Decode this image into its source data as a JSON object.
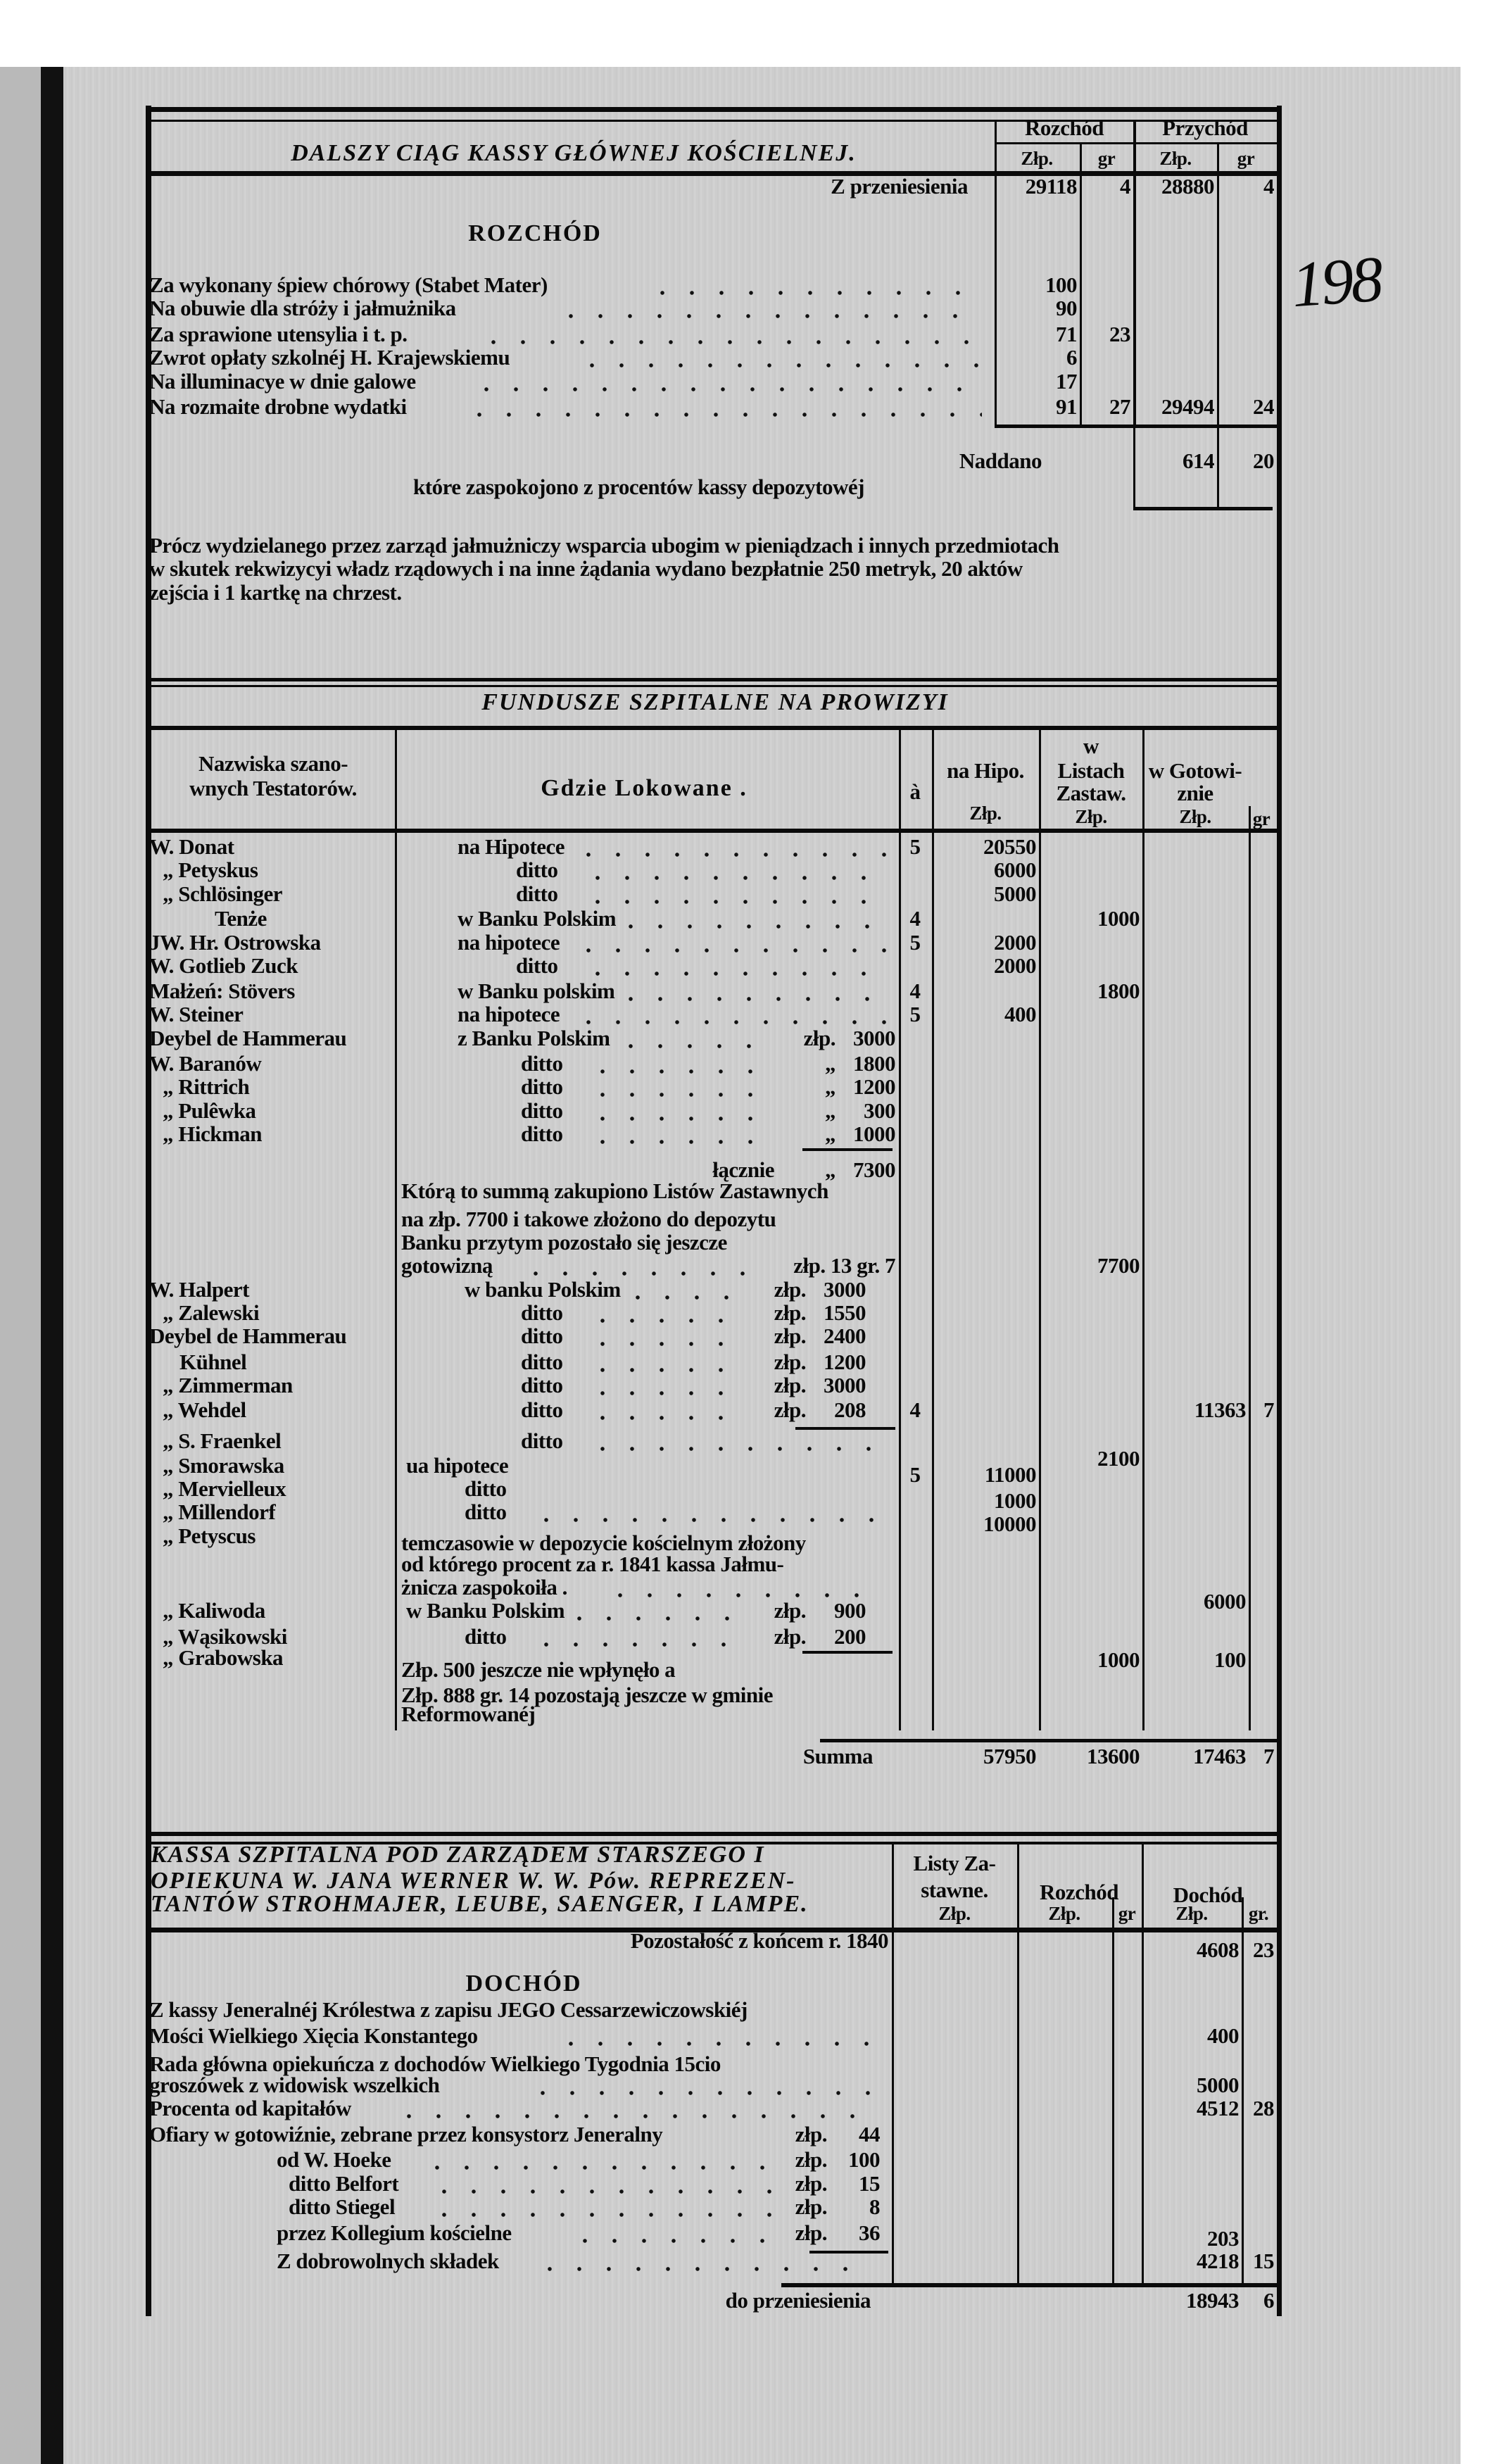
{
  "handwritten_page_number": "198",
  "s1": {
    "title": "DALSZY CIĄG KASSY GŁÓWNEJ KOŚCIELNEJ.",
    "h_rozchod": "Rozchód",
    "h_przychod": "Przychód",
    "h_zlp": "Złp.",
    "h_gr": "gr",
    "carry_label": "Z przeniesienia",
    "carry": {
      "rozchod_zlp": "29118",
      "rozchod_gr": "4",
      "przychod_zlp": "28880",
      "przychod_gr": "4"
    },
    "section": "ROZCHÓD",
    "items": [
      {
        "label": "Za wykonany śpiew chórowy (Stabet Mater)",
        "zlp": "100",
        "gr": ""
      },
      {
        "label": "Na obuwie dla stróży i jałmużnika",
        "zlp": "90",
        "gr": ""
      },
      {
        "label": "Za sprawione utensylia i t. p.",
        "zlp": "71",
        "gr": "23"
      },
      {
        "label": "Zwrot opłaty szkolnéj H. Krajewskiemu",
        "zlp": "6",
        "gr": ""
      },
      {
        "label": "Na illuminacye w dnie galowe",
        "zlp": "17",
        "gr": ""
      },
      {
        "label": "Na rozmaite drobne wydatki",
        "zlp": "91",
        "gr": "27"
      }
    ],
    "total": {
      "zlp": "29494",
      "gr": "24"
    },
    "naddano_label": "Naddano",
    "naddano": {
      "zlp": "614",
      "gr": "20"
    },
    "naddano_note": "które zaspokojono z procentów kassy depozytowéj",
    "paragraph": [
      "Prócz wydzielanego przez zarząd jałmużniczy wsparcia ubogim w pieniądzach i innych przedmiotach",
      "w skutek rekwizycyi władz rządowych i na inne żądania wydano bezpłatnie 250 metryk, 20 aktów",
      "zejścia i 1 kartkę na chrzest."
    ]
  },
  "s2": {
    "title": "FUNDUSZE SZPITALNE NA PROWIZYI",
    "headers": {
      "names": [
        "Nazwiska szano-",
        "wnych Testatorów."
      ],
      "where": "Gdzie Lokowane .",
      "rate": "à",
      "hipo": [
        "na Hipo.",
        "Złp."
      ],
      "listy": [
        "w",
        "Listach",
        "Zastaw.",
        "Złp."
      ],
      "gotow": [
        "w Gotowi-",
        "znie",
        "Złp."
      ],
      "gr": "gr"
    },
    "rows": [
      {
        "name": "W. Donat",
        "where": "na Hipotece",
        "rate": "5",
        "hipo": "20550",
        "listy": "",
        "gotow": "",
        "gr": "",
        "amt_prefix": "",
        "amt": ""
      },
      {
        "name": "„ Petyskus",
        "where": "ditto",
        "rate": "",
        "hipo": "6000",
        "listy": "",
        "gotow": "",
        "gr": "",
        "amt_prefix": "",
        "amt": ""
      },
      {
        "name": "„ Schlösinger",
        "where": "ditto",
        "rate": "",
        "hipo": "5000",
        "listy": "",
        "gotow": "",
        "gr": "",
        "amt_prefix": "",
        "amt": ""
      },
      {
        "name": "Tenże",
        "where": "w Banku Polskim",
        "rate": "4",
        "hipo": "",
        "listy": "1000",
        "gotow": "",
        "gr": "",
        "amt_prefix": "",
        "amt": ""
      },
      {
        "name": "JW. Hr. Ostrowska",
        "where": "na hipotece",
        "rate": "5",
        "hipo": "2000",
        "listy": "",
        "gotow": "",
        "gr": "",
        "amt_prefix": "",
        "amt": ""
      },
      {
        "name": "W. Gotlieb Zuck",
        "where": "ditto",
        "rate": "",
        "hipo": "2000",
        "listy": "",
        "gotow": "",
        "gr": "",
        "amt_prefix": "",
        "amt": ""
      },
      {
        "name": "Małżeń: Stövers",
        "where": "w Banku polskim",
        "rate": "4",
        "hipo": "",
        "listy": "1800",
        "gotow": "",
        "gr": "",
        "amt_prefix": "",
        "amt": ""
      },
      {
        "name": "W. Steiner",
        "where": "na hipotece",
        "rate": "5",
        "hipo": "400",
        "listy": "",
        "gotow": "",
        "gr": "",
        "amt_prefix": "",
        "amt": ""
      },
      {
        "name": "Deybel de Hammerau",
        "where": "z Banku Polskim",
        "rate": "",
        "hipo": "",
        "listy": "",
        "gotow": "",
        "gr": "",
        "amt_prefix": "złp.",
        "amt": "3000"
      },
      {
        "name": "W. Baranów",
        "where": "ditto",
        "rate": "",
        "hipo": "",
        "listy": "",
        "gotow": "",
        "gr": "",
        "amt_prefix": "„",
        "amt": "1800"
      },
      {
        "name": "„ Rittrich",
        "where": "ditto",
        "rate": "",
        "hipo": "",
        "listy": "",
        "gotow": "",
        "gr": "",
        "amt_prefix": "„",
        "amt": "1200"
      },
      {
        "name": "„ Pulêwka",
        "where": "ditto",
        "rate": "",
        "hipo": "",
        "listy": "",
        "gotow": "",
        "gr": "",
        "amt_prefix": "„",
        "amt": "300"
      },
      {
        "name": "„ Hickman",
        "where": "ditto",
        "rate": "",
        "hipo": "",
        "listy": "",
        "gotow": "",
        "gr": "",
        "amt_prefix": "„",
        "amt": "1000"
      },
      {
        "name": "W. Halpert",
        "where": "w banku Polskim",
        "rate": "",
        "hipo": "",
        "listy": "",
        "gotow": "",
        "gr": "",
        "amt_prefix": "złp.",
        "amt": "3000"
      },
      {
        "name": "„ Zalewski",
        "where": "ditto",
        "rate": "",
        "hipo": "",
        "listy": "",
        "gotow": "",
        "gr": "",
        "amt_prefix": "złp.",
        "amt": "1550"
      },
      {
        "name": "Deybel de Hammerau",
        "where": "ditto",
        "rate": "",
        "hipo": "",
        "listy": "",
        "gotow": "",
        "gr": "",
        "amt_prefix": "złp.",
        "amt": "2400"
      },
      {
        "name": "Kühnel",
        "where": "ditto",
        "rate": "",
        "hipo": "",
        "listy": "",
        "gotow": "",
        "gr": "",
        "amt_prefix": "złp.",
        "amt": "1200"
      },
      {
        "name": "„ Zimmerman",
        "where": "ditto",
        "rate": "",
        "hipo": "",
        "listy": "",
        "gotow": "",
        "gr": "",
        "amt_prefix": "złp.",
        "amt": "3000"
      },
      {
        "name": "„ Wehdel",
        "where": "ditto",
        "rate": "4",
        "hipo": "",
        "listy": "",
        "gotow": "11363",
        "gr": "7",
        "amt_prefix": "złp.",
        "amt": "208"
      },
      {
        "name": "„ S. Fraenkel",
        "where": "ditto",
        "rate": "",
        "hipo": "",
        "listy": "2100",
        "gotow": "",
        "gr": "",
        "amt_prefix": "",
        "amt": ""
      },
      {
        "name": "„ Smorawska",
        "where": "ua hipotece",
        "rate": "5",
        "hipo": "11000",
        "listy": "",
        "gotow": "",
        "gr": "",
        "amt_prefix": "",
        "amt": ""
      },
      {
        "name": "„ Mervielleux",
        "where": "ditto",
        "rate": "",
        "hipo": "1000",
        "listy": "",
        "gotow": "",
        "gr": "",
        "amt_prefix": "",
        "amt": ""
      },
      {
        "name": "„ Millendorf",
        "where": "ditto",
        "rate": "",
        "hipo": "10000",
        "listy": "",
        "gotow": "",
        "gr": "",
        "amt_prefix": "",
        "amt": ""
      },
      {
        "name": "„ Petyscus",
        "where": "",
        "rate": "",
        "hipo": "",
        "listy": "",
        "gotow": "6000",
        "gr": "",
        "amt_prefix": "",
        "amt": ""
      },
      {
        "name": "„ Kaliwoda",
        "where": "w Banku Polskim",
        "rate": "",
        "hipo": "",
        "listy": "",
        "gotow": "",
        "gr": "",
        "amt_prefix": "złp.",
        "amt": "900"
      },
      {
        "name": "„ Wąsikowski",
        "where": "ditto",
        "rate": "",
        "hipo": "",
        "listy": "",
        "gotow": "",
        "gr": "",
        "amt_prefix": "złp.",
        "amt": "200"
      },
      {
        "name": "„ Grabowska",
        "where": "",
        "rate": "",
        "hipo": "",
        "listy": "1000",
        "gotow": "100",
        "gr": "",
        "amt_prefix": "",
        "amt": ""
      }
    ],
    "subtotal": {
      "label": "łącznie",
      "prefix": "„",
      "amt": "7300"
    },
    "note1": [
      "Którą to summą zakupiono Listów Zastawnych",
      "na złp. 7700 i takowe złożono do depozytu",
      "Banku przytym pozostało się jeszcze",
      "gotowizną"
    ],
    "note1_amount": "złp. 13 gr. 7",
    "note1_listy": "7700",
    "note2": [
      "temczasowie w depozycie kościelnym złożony",
      "od którego procent za r. 1841 kassa Jałmu-",
      "żnicza zaspokoiła ."
    ],
    "note3": [
      "Złp. 500 jeszcze nie wpłynęło a",
      "Złp. 888 gr. 14 pozostają jeszcze w gminie",
      "Reformowanéj"
    ],
    "summa_label": "Summa",
    "summa": {
      "hipo": "57950",
      "listy": "13600",
      "gotow": "17463",
      "gr": "7"
    }
  },
  "s3": {
    "title": [
      "KASSA SZPITALNA POD ZARZĄDEM STARSZEGO I",
      "OPIEKUNA W. JANA WERNER W. W. Pów. REPREZEN-",
      "TANTÓW STROHMAJER, LEUBE, SAENGER, I LAMPE."
    ],
    "h_listy": [
      "Listy Za-",
      "stawne.",
      "Złp."
    ],
    "h_rozchod": [
      "Rozchód",
      "Złp.",
      "gr"
    ],
    "h_dochod": [
      "Dochód",
      "Złp.",
      "gr."
    ],
    "balance_label": "Pozostałość z końcem r. 1840",
    "balance": {
      "zlp": "4608",
      "gr": "23"
    },
    "section": "DOCHÓD",
    "lines": [
      {
        "text": "Z kassy Jeneralnéj Królestwa z zapisu JEGO Cessarzewiczowskiéj",
        "zlp": "",
        "gr": ""
      },
      {
        "text": "Mości Wielkiego Xięcia Konstantego",
        "zlp": "400",
        "gr": ""
      },
      {
        "text": "Rada główna opiekuńcza z dochodów Wielkiego Tygodnia 15cio",
        "zlp": "",
        "gr": ""
      },
      {
        "text": "groszówek z widowisk wszelkich",
        "zlp": "5000",
        "gr": ""
      },
      {
        "text": "Procenta od kapitałów",
        "zlp": "4512",
        "gr": "28"
      }
    ],
    "offerings": [
      {
        "text": "Ofiary w gotowiźnie, zebrane przez konsystorz Jeneralny",
        "prefix": "złp.",
        "amt": "44"
      },
      {
        "text": "od W. Hoeke",
        "prefix": "złp.",
        "amt": "100"
      },
      {
        "text": "ditto Belfort",
        "prefix": "złp.",
        "amt": "15"
      },
      {
        "text": "ditto Stiegel",
        "prefix": "złp.",
        "amt": "8"
      },
      {
        "text": "przez Kollegium kościelne",
        "prefix": "złp.",
        "amt": "36"
      }
    ],
    "offerings_total": "203",
    "voluntary_label": "Z dobrowolnych składek",
    "voluntary": {
      "zlp": "4218",
      "gr": "15"
    },
    "carry_label": "do przeniesienia",
    "carry": {
      "zlp": "18943",
      "gr": "6"
    }
  }
}
